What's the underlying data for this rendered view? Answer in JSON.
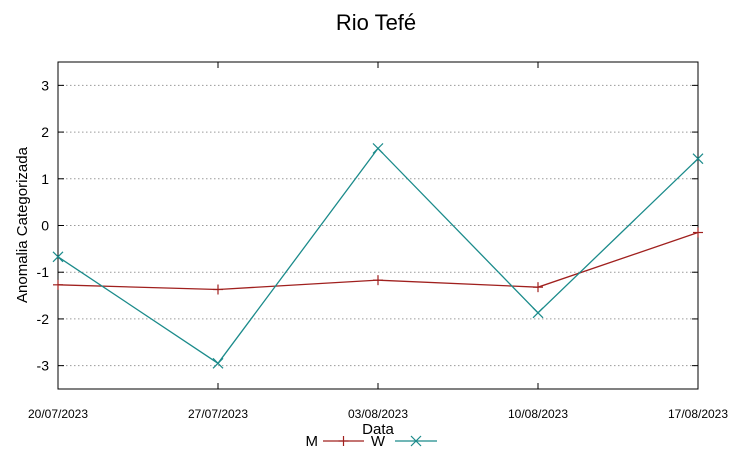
{
  "chart_data": {
    "type": "line",
    "title": "Rio Tefé",
    "xlabel": "Data",
    "ylabel": "Anomalia Categorizada",
    "categories": [
      "20/07/2023",
      "27/07/2023",
      "03/08/2023",
      "10/08/2023",
      "17/08/2023"
    ],
    "ylim": [
      -3.5,
      3.5
    ],
    "yticks": [
      -3,
      -2,
      -1,
      0,
      1,
      2,
      3
    ],
    "grid": "y-dotted",
    "legend_position": "bottom",
    "series": [
      {
        "name": "M",
        "color": "#a0201e",
        "marker": "plus",
        "values": [
          -1.27,
          -1.37,
          -1.17,
          -1.32,
          -0.15
        ]
      },
      {
        "name": "W",
        "color": "#1b8b8b",
        "marker": "cross",
        "values": [
          -0.67,
          -2.95,
          1.65,
          -1.87,
          1.43
        ]
      }
    ]
  }
}
